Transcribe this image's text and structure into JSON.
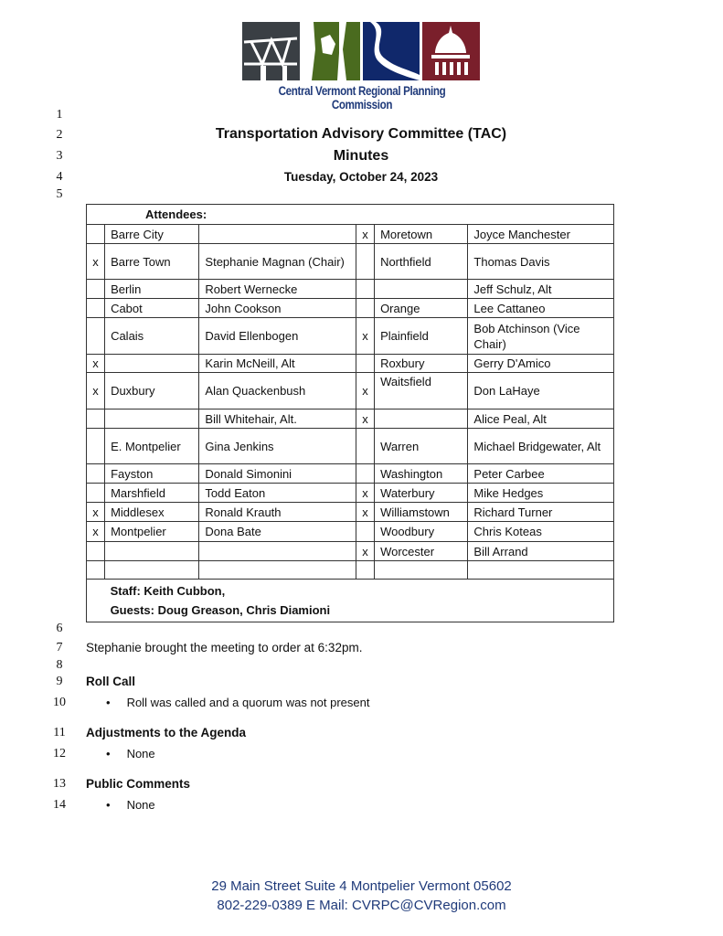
{
  "logo": {
    "text": "Central Vermont Regional Planning Commission",
    "colors": [
      "#3a3f44",
      "#4a6b1f",
      "#10286b",
      "#7a1f2b"
    ]
  },
  "line_numbers": [
    "1",
    "2",
    "3",
    "4",
    "5",
    "6",
    "7",
    "8",
    "9",
    "10",
    "11",
    "12",
    "13",
    "14"
  ],
  "header": {
    "title": "Transportation Advisory Committee (TAC)",
    "subtitle": "Minutes",
    "date": "Tuesday, October 24, 2023"
  },
  "attendees": {
    "label": "Attendees:",
    "rows": [
      [
        "",
        "Barre City",
        "",
        "x",
        "Moretown",
        "Joyce Manchester"
      ],
      [
        "x",
        "Barre Town",
        "Stephanie Magnan (Chair)",
        "",
        "Northfield",
        "Thomas Davis"
      ],
      [
        "",
        "Berlin",
        "Robert Wernecke",
        "",
        "",
        "Jeff Schulz, Alt"
      ],
      [
        "",
        "Cabot",
        "John Cookson",
        "",
        "Orange",
        "Lee Cattaneo"
      ],
      [
        "",
        "Calais",
        "David Ellenbogen",
        "x",
        "Plainfield",
        "Bob Atchinson (Vice Chair)"
      ],
      [
        "x",
        "",
        "Karin McNeill, Alt",
        "",
        "Roxbury",
        "Gerry D'Amico"
      ],
      [
        "x",
        "Duxbury",
        "Alan Quackenbush",
        "x",
        "Waitsfield",
        "Don LaHaye"
      ],
      [
        "",
        "",
        "Bill Whitehair, Alt.",
        "x",
        "",
        "Alice Peal, Alt"
      ],
      [
        "",
        "E. Montpelier",
        "Gina Jenkins",
        "",
        "Warren",
        "Michael Bridgewater, Alt"
      ],
      [
        "",
        "Fayston",
        "Donald Simonini",
        "",
        "Washington",
        "Peter Carbee"
      ],
      [
        "",
        "Marshfield",
        "Todd Eaton",
        "x",
        "Waterbury",
        "Mike Hedges"
      ],
      [
        "x",
        "Middlesex",
        "Ronald Krauth",
        "x",
        "Williamstown",
        "Richard Turner"
      ],
      [
        "x",
        "Montpelier",
        "Dona Bate",
        "",
        "Woodbury",
        "Chris Koteas"
      ],
      [
        "",
        "",
        "",
        "x",
        "Worcester",
        "Bill Arrand"
      ],
      [
        "",
        "",
        "",
        "",
        "",
        ""
      ]
    ],
    "staff": "Staff: Keith Cubbon,",
    "guests": "Guests: Doug Greason, Chris Diamioni"
  },
  "body": {
    "call_to_order": "Stephanie brought the meeting to order at 6:32pm.",
    "sections": [
      {
        "heading": "Roll Call",
        "bullets": [
          "Roll was called and a quorum was not present"
        ]
      },
      {
        "heading": "Adjustments to the Agenda",
        "bullets": [
          "None"
        ]
      },
      {
        "heading": "Public Comments",
        "bullets": [
          "None"
        ]
      }
    ]
  },
  "footer": {
    "address": "29 Main Street   Suite 4   Montpelier  Vermont 05602",
    "contact": "802-229-0389  E Mail: CVRPC@CVRegion.com"
  }
}
